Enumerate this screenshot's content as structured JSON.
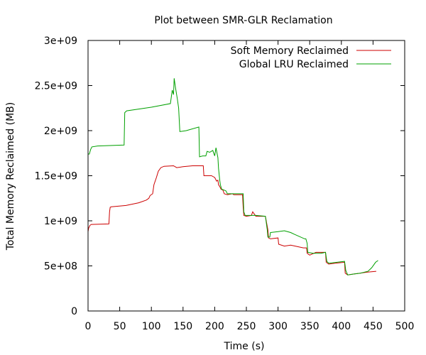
{
  "chart_data": {
    "type": "line",
    "title": "Plot between SMR-GLR Reclamation",
    "xlabel": "Time (s)",
    "ylabel": "Total Memory Reclaimed (MB)",
    "xlim": [
      0,
      500
    ],
    "ylim": [
      0,
      3000000000
    ],
    "x_ticks": [
      0,
      50,
      100,
      150,
      200,
      250,
      300,
      350,
      400,
      450,
      500
    ],
    "x_tick_labels": [
      "0",
      "50",
      "100",
      "150",
      "200",
      "250",
      "300",
      "350",
      "400",
      "450",
      "500"
    ],
    "y_ticks": [
      0,
      500000000,
      1000000000,
      1500000000,
      2000000000,
      2500000000,
      3000000000
    ],
    "y_tick_labels": [
      "0",
      "5e+08",
      "1e+09",
      "1.5e+09",
      "2e+09",
      "2.5e+09",
      "3e+09"
    ],
    "grid": false,
    "legend_position": "top-right",
    "series": [
      {
        "name": "Soft Memory Reclaimed",
        "color": "#cc0000",
        "points": [
          [
            0,
            880000000
          ],
          [
            1,
            920000000
          ],
          [
            3,
            950000000
          ],
          [
            5,
            960000000
          ],
          [
            33,
            965000000
          ],
          [
            34,
            1100000000
          ],
          [
            35,
            1150000000
          ],
          [
            37,
            1155000000
          ],
          [
            60,
            1170000000
          ],
          [
            80,
            1200000000
          ],
          [
            92,
            1230000000
          ],
          [
            96,
            1250000000
          ],
          [
            98,
            1280000000
          ],
          [
            102,
            1300000000
          ],
          [
            104,
            1400000000
          ],
          [
            108,
            1480000000
          ],
          [
            111,
            1550000000
          ],
          [
            115,
            1590000000
          ],
          [
            120,
            1605000000
          ],
          [
            135,
            1610000000
          ],
          [
            140,
            1590000000
          ],
          [
            150,
            1600000000
          ],
          [
            165,
            1610000000
          ],
          [
            182,
            1610000000
          ],
          [
            183,
            1500000000
          ],
          [
            195,
            1500000000
          ],
          [
            200,
            1480000000
          ],
          [
            203,
            1440000000
          ],
          [
            205,
            1450000000
          ],
          [
            206,
            1400000000
          ],
          [
            208,
            1380000000
          ],
          [
            210,
            1350000000
          ],
          [
            213,
            1340000000
          ],
          [
            215,
            1300000000
          ],
          [
            220,
            1290000000
          ],
          [
            228,
            1300000000
          ],
          [
            230,
            1290000000
          ],
          [
            244,
            1290000000
          ],
          [
            245,
            1150000000
          ],
          [
            246,
            1060000000
          ],
          [
            250,
            1050000000
          ],
          [
            258,
            1060000000
          ],
          [
            260,
            1100000000
          ],
          [
            262,
            1080000000
          ],
          [
            265,
            1050000000
          ],
          [
            280,
            1050000000
          ],
          [
            284,
            900000000
          ],
          [
            285,
            810000000
          ],
          [
            288,
            800000000
          ],
          [
            300,
            810000000
          ],
          [
            301,
            740000000
          ],
          [
            310,
            720000000
          ],
          [
            320,
            730000000
          ],
          [
            340,
            700000000
          ],
          [
            345,
            700000000
          ],
          [
            346,
            640000000
          ],
          [
            350,
            620000000
          ],
          [
            360,
            650000000
          ],
          [
            375,
            650000000
          ],
          [
            376,
            540000000
          ],
          [
            380,
            520000000
          ],
          [
            390,
            530000000
          ],
          [
            405,
            540000000
          ],
          [
            406,
            420000000
          ],
          [
            410,
            400000000
          ],
          [
            420,
            410000000
          ],
          [
            430,
            420000000
          ],
          [
            440,
            430000000
          ],
          [
            455,
            440000000
          ]
        ]
      },
      {
        "name": "Global LRU Reclaimed",
        "color": "#00a000",
        "points": [
          [
            0,
            1740000000
          ],
          [
            2,
            1740000000
          ],
          [
            4,
            1790000000
          ],
          [
            6,
            1820000000
          ],
          [
            15,
            1830000000
          ],
          [
            57,
            1840000000
          ],
          [
            58,
            2200000000
          ],
          [
            61,
            2220000000
          ],
          [
            100,
            2260000000
          ],
          [
            130,
            2300000000
          ],
          [
            133,
            2450000000
          ],
          [
            135,
            2400000000
          ],
          [
            136,
            2580000000
          ],
          [
            138,
            2480000000
          ],
          [
            141,
            2350000000
          ],
          [
            143,
            2250000000
          ],
          [
            145,
            1990000000
          ],
          [
            155,
            2000000000
          ],
          [
            175,
            2040000000
          ],
          [
            176,
            1710000000
          ],
          [
            181,
            1720000000
          ],
          [
            186,
            1720000000
          ],
          [
            188,
            1770000000
          ],
          [
            192,
            1760000000
          ],
          [
            197,
            1780000000
          ],
          [
            200,
            1720000000
          ],
          [
            202,
            1810000000
          ],
          [
            205,
            1700000000
          ],
          [
            206,
            1580000000
          ],
          [
            208,
            1450000000
          ],
          [
            209,
            1400000000
          ],
          [
            211,
            1350000000
          ],
          [
            215,
            1340000000
          ],
          [
            218,
            1330000000
          ],
          [
            220,
            1300000000
          ],
          [
            245,
            1300000000
          ],
          [
            246,
            1100000000
          ],
          [
            248,
            1060000000
          ],
          [
            265,
            1060000000
          ],
          [
            280,
            1050000000
          ],
          [
            283,
            900000000
          ],
          [
            284,
            820000000
          ],
          [
            287,
            820000000
          ],
          [
            288,
            870000000
          ],
          [
            300,
            880000000
          ],
          [
            310,
            890000000
          ],
          [
            320,
            870000000
          ],
          [
            326,
            850000000
          ],
          [
            342,
            800000000
          ],
          [
            344,
            800000000
          ],
          [
            346,
            750000000
          ],
          [
            347,
            650000000
          ],
          [
            355,
            640000000
          ],
          [
            368,
            640000000
          ],
          [
            375,
            650000000
          ],
          [
            377,
            550000000
          ],
          [
            380,
            530000000
          ],
          [
            393,
            540000000
          ],
          [
            405,
            550000000
          ],
          [
            407,
            450000000
          ],
          [
            410,
            400000000
          ],
          [
            420,
            410000000
          ],
          [
            430,
            420000000
          ],
          [
            442,
            440000000
          ],
          [
            448,
            480000000
          ],
          [
            454,
            540000000
          ],
          [
            458,
            560000000
          ]
        ]
      }
    ]
  }
}
